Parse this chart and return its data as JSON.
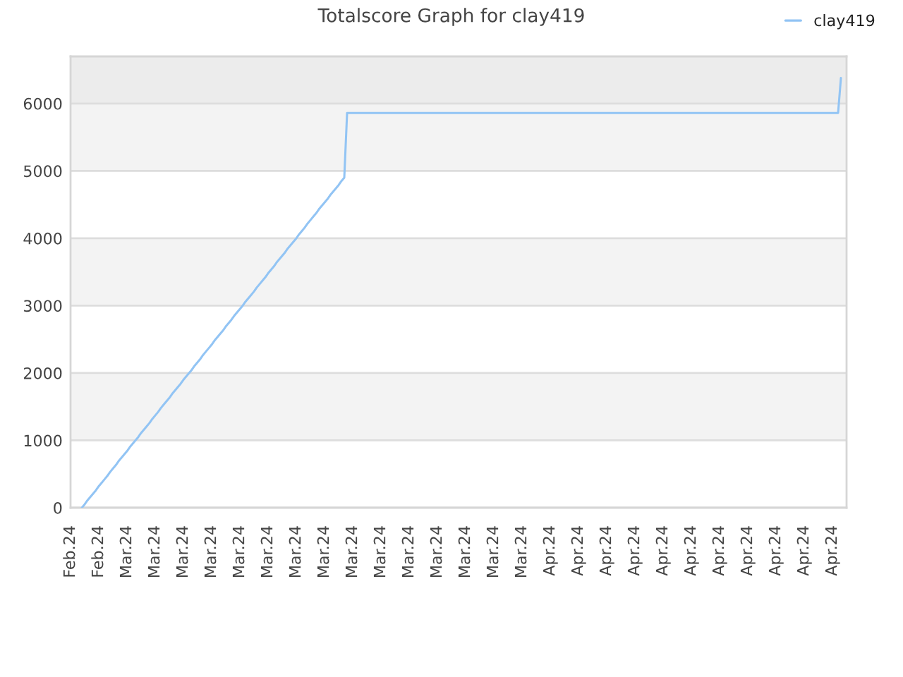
{
  "chart_data": {
    "type": "line",
    "title": "Totalscore Graph for clay419",
    "categories": [
      "Feb.24",
      null,
      null,
      null,
      null,
      null,
      null,
      null,
      null,
      null,
      "Feb.24",
      null,
      null,
      null,
      null,
      null,
      null,
      null,
      null,
      null,
      "Mar.24",
      null,
      null,
      null,
      null,
      null,
      null,
      null,
      null,
      null,
      "Mar.24",
      null,
      null,
      null,
      null,
      null,
      null,
      null,
      null,
      null,
      "Mar.24",
      null,
      null,
      null,
      null,
      null,
      null,
      null,
      null,
      null,
      "Mar.24",
      null,
      null,
      null,
      null,
      null,
      null,
      null,
      null,
      null,
      "Mar.24",
      null,
      null,
      null,
      null,
      null,
      null,
      null,
      null,
      null,
      "Mar.24",
      null,
      null,
      null,
      null,
      null,
      null,
      null,
      null,
      null,
      "Mar.24",
      null,
      null,
      null,
      null,
      null,
      null,
      null,
      null,
      null,
      "Mar.24",
      null,
      null,
      null,
      null,
      null,
      null,
      null,
      null,
      null,
      "Mar.24",
      null,
      null,
      null,
      null,
      null,
      null,
      null,
      null,
      null,
      "Mar.24",
      null,
      null,
      null,
      null,
      null,
      null,
      null,
      null,
      null,
      "Mar.24",
      null,
      null,
      null,
      null,
      null,
      null,
      null,
      null,
      null,
      "Mar.24",
      null,
      null,
      null,
      null,
      null,
      null,
      null,
      null,
      null,
      "Mar.24",
      null,
      null,
      null,
      null,
      null,
      null,
      null,
      null,
      null,
      "Mar.24",
      null,
      null,
      null,
      null,
      null,
      null,
      null,
      null,
      null,
      "Mar.24",
      null,
      null,
      null,
      null,
      null,
      null,
      null,
      null,
      null,
      "Apr.24",
      null,
      null,
      null,
      null,
      null,
      null,
      null,
      null,
      null,
      "Apr.24",
      null,
      null,
      null,
      null,
      null,
      null,
      null,
      null,
      null,
      "Apr.24",
      null,
      null,
      null,
      null,
      null,
      null,
      null,
      null,
      null,
      "Apr.24",
      null,
      null,
      null,
      null,
      null,
      null,
      null,
      null,
      null,
      "Apr.24",
      null,
      null,
      null,
      null,
      null,
      null,
      null,
      null,
      null,
      "Apr.24",
      null,
      null,
      null,
      null,
      null,
      null,
      null,
      null,
      null,
      "Apr.24",
      null,
      null,
      null,
      null,
      null,
      null,
      null,
      null,
      null,
      "Apr.24",
      null,
      null,
      null,
      null,
      null,
      null,
      null,
      null,
      null,
      "Apr.24",
      null,
      null,
      null,
      null,
      null,
      null,
      null,
      null,
      null,
      "Apr.24",
      null,
      null,
      null,
      null,
      null,
      null,
      null,
      null,
      null,
      "Apr.24",
      null,
      null,
      null,
      null,
      null
    ],
    "series": [
      {
        "name": "clay419",
        "color": "#92c4f4",
        "values": [
          null,
          null,
          null,
          null,
          0,
          50,
          110,
          160,
          210,
          260,
          320,
          370,
          420,
          470,
          530,
          580,
          630,
          690,
          740,
          790,
          840,
          900,
          950,
          1000,
          1050,
          1110,
          1160,
          1210,
          1260,
          1320,
          1370,
          1420,
          1480,
          1530,
          1580,
          1630,
          1690,
          1740,
          1790,
          1840,
          1900,
          1950,
          2000,
          2050,
          2110,
          2160,
          2210,
          2270,
          2320,
          2370,
          2420,
          2480,
          2530,
          2580,
          2630,
          2690,
          2740,
          2790,
          2850,
          2900,
          2950,
          3000,
          3060,
          3110,
          3160,
          3210,
          3270,
          3320,
          3370,
          3420,
          3480,
          3530,
          3580,
          3640,
          3690,
          3740,
          3790,
          3850,
          3900,
          3950,
          4000,
          4060,
          4110,
          4160,
          4220,
          4270,
          4320,
          4370,
          4430,
          4480,
          4530,
          4580,
          4640,
          4690,
          4740,
          4790,
          4850,
          4900,
          5860,
          5860,
          5860,
          5860,
          5860,
          5860,
          5860,
          5860,
          5860,
          5860,
          5860,
          5860,
          5860,
          5860,
          5860,
          5860,
          5860,
          5860,
          5860,
          5860,
          5860,
          5860,
          5860,
          5860,
          5860,
          5860,
          5860,
          5860,
          5860,
          5860,
          5860,
          5860,
          5860,
          5860,
          5860,
          5860,
          5860,
          5860,
          5860,
          5860,
          5860,
          5860,
          5860,
          5860,
          5860,
          5860,
          5860,
          5860,
          5860,
          5860,
          5860,
          5860,
          5860,
          5860,
          5860,
          5860,
          5860,
          5860,
          5860,
          5860,
          5860,
          5860,
          5860,
          5860,
          5860,
          5860,
          5860,
          5860,
          5860,
          5860,
          5860,
          5860,
          5860,
          5860,
          5860,
          5860,
          5860,
          5860,
          5860,
          5860,
          5860,
          5860,
          5860,
          5860,
          5860,
          5860,
          5860,
          5860,
          5860,
          5860,
          5860,
          5860,
          5860,
          5860,
          5860,
          5860,
          5860,
          5860,
          5860,
          5860,
          5860,
          5860,
          5860,
          5860,
          5860,
          5860,
          5860,
          5860,
          5860,
          5860,
          5860,
          5860,
          5860,
          5860,
          5860,
          5860,
          5860,
          5860,
          5860,
          5860,
          5860,
          5860,
          5860,
          5860,
          5860,
          5860,
          5860,
          5860,
          5860,
          5860,
          5860,
          5860,
          5860,
          5860,
          5860,
          5860,
          5860,
          5860,
          5860,
          5860,
          5860,
          5860,
          5860,
          5860,
          5860,
          5860,
          5860,
          5860,
          5860,
          5860,
          5860,
          5860,
          5860,
          5860,
          5860,
          5860,
          5860,
          5860,
          5860,
          5860,
          5860,
          5860,
          5860,
          5860,
          5860,
          5860,
          5860,
          5860,
          5860,
          5860,
          5860,
          5860,
          5860,
          5860,
          5860,
          6380,
          null,
          null
        ]
      }
    ],
    "ylim": [
      0,
      6700
    ],
    "yticks": [
      0,
      1000,
      2000,
      3000,
      4000,
      5000,
      6000
    ],
    "bands": [
      {
        "axis": "y",
        "from": 1000,
        "to": 2000,
        "color": "#f3f3f3"
      },
      {
        "axis": "y",
        "from": 3000,
        "to": 4000,
        "color": "#f3f3f3"
      },
      {
        "axis": "y",
        "from": 5000,
        "to": 6000,
        "color": "#f3f3f3"
      },
      {
        "axis": "y",
        "from": 6000,
        "to": 6700,
        "color": "#ececec"
      }
    ],
    "grid": "y",
    "legend": "top right"
  }
}
